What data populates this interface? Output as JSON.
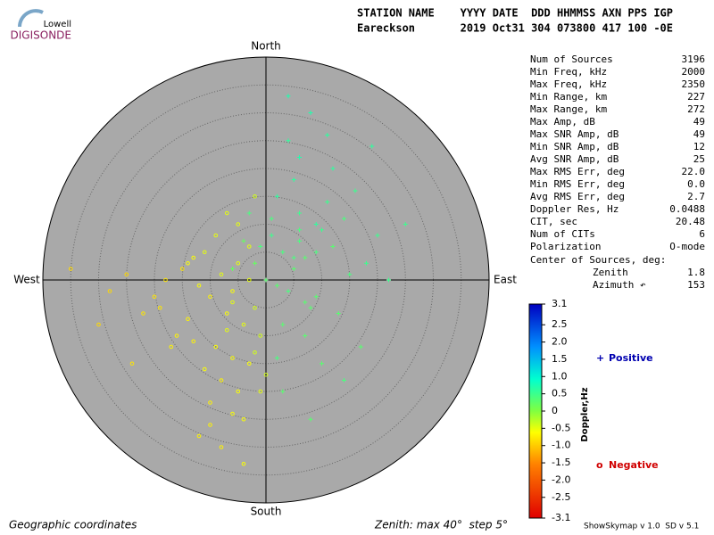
{
  "logo": {
    "top": "Lowell",
    "bottom": "DIGISONDE"
  },
  "header": {
    "line1": "STATION NAME    YYYY DATE  DDD HHMMSS AXN PPS IGP",
    "line2": "Eareckson       2019 Oct31 304 073800 417 100 -0E"
  },
  "stats": [
    [
      "Num of Sources",
      "3196"
    ],
    [
      "Min Freq, kHz",
      "2000"
    ],
    [
      "Max Freq, kHz",
      "2350"
    ],
    [
      "Min Range, km",
      "227"
    ],
    [
      "Max Range, km",
      "272"
    ],
    [
      "Max Amp, dB",
      "49"
    ],
    [
      "Max SNR Amp, dB",
      "49"
    ],
    [
      "Min SNR Amp, dB",
      "12"
    ],
    [
      "Avg SNR Amp, dB",
      "25"
    ],
    [
      "Max RMS Err, deg",
      "22.0"
    ],
    [
      "Min RMS Err, deg",
      "0.0"
    ],
    [
      "Avg RMS Err, deg",
      "2.7"
    ],
    [
      "Doppler Res, Hz",
      "0.0488"
    ],
    [
      "CIT, sec",
      "20.48"
    ],
    [
      "Num of CITs",
      "6"
    ],
    [
      "Polarization",
      "O-mode"
    ]
  ],
  "center": {
    "title": "Center of Sources, deg:",
    "zenith_label": "Zenith",
    "zenith": "1.8",
    "azimuth_label": "Azimuth ↶",
    "azimuth": "153"
  },
  "footer": {
    "left": "Geographic coordinates",
    "middle": "Zenith: max 40°  step 5°",
    "right": "ShowSkymap v 1.0  SD v 5.1"
  },
  "chart_data": {
    "type": "skymap",
    "directions": {
      "north": "North",
      "south": "South",
      "west": "West",
      "east": "East"
    },
    "rlim": [
      0,
      40
    ],
    "rticks": [
      5,
      10,
      15,
      20,
      25,
      30,
      35
    ],
    "colorbar": {
      "title": "Doppler,Hz",
      "lim": [
        -3.1,
        3.1
      ],
      "ticks": [
        3.1,
        2.5,
        {
          "value": 2,
          "label": "2.0"
        },
        1.5,
        {
          "value": 1,
          "label": "1.0"
        },
        0.5,
        0,
        -0.5,
        {
          "value": -1,
          "label": "-1.0"
        },
        -1.5,
        {
          "value": -2,
          "label": "-2.0"
        },
        -2.5,
        -3.1
      ]
    },
    "series": [
      {
        "name": "Positive",
        "marker": "+",
        "color": "#0000b0",
        "x": [
          3,
          5,
          1,
          7,
          9,
          -2,
          4,
          6,
          12,
          15,
          2,
          8,
          -4,
          10,
          0,
          5,
          3,
          14,
          18,
          6,
          9,
          11,
          -1,
          7,
          4,
          2,
          13,
          20,
          8,
          5,
          16,
          1,
          -6,
          10,
          6,
          3,
          22,
          12,
          7,
          9,
          -3,
          17,
          4,
          25,
          11,
          2,
          8,
          14,
          6,
          19
        ],
        "y": [
          5,
          2,
          8,
          4,
          10,
          3,
          -2,
          12,
          6,
          1,
          15,
          -5,
          7,
          9,
          0,
          18,
          -8,
          11,
          3,
          22,
          -3,
          14,
          6,
          -10,
          25,
          -14,
          -6,
          8,
          30,
          4,
          16,
          11,
          2,
          -15,
          7,
          -20,
          0,
          20,
          -4,
          5,
          12,
          -12,
          33,
          10,
          26,
          -1,
          -25,
          -18,
          9,
          24
        ],
        "doppler": [
          0.4,
          0.3,
          0.5,
          0.3,
          0.6,
          0.2,
          0.4,
          0.5,
          0.3,
          0.4,
          0.6,
          0.3,
          0.2,
          0.5,
          0.3,
          0.6,
          0.3,
          0.4,
          0.5,
          0.7,
          0.3,
          0.5,
          0.4,
          0.3,
          0.6,
          0.4,
          0.3,
          0.5,
          0.7,
          0.4,
          0.5,
          0.4,
          0.2,
          0.3,
          0.4,
          0.3,
          0.5,
          0.6,
          0.3,
          0.4,
          0.4,
          0.3,
          0.7,
          0.5,
          0.6,
          0.3,
          0.3,
          0.4,
          0.4,
          0.6
        ]
      },
      {
        "name": "Negative",
        "marker": "o",
        "color": "#d00000",
        "x": [
          -3,
          -6,
          -8,
          -2,
          -10,
          -5,
          -12,
          -4,
          -7,
          -15,
          -1,
          -9,
          -11,
          -6,
          -14,
          -3,
          -18,
          -8,
          -5,
          -20,
          -2,
          -13,
          -7,
          -10,
          -25,
          -4,
          -16,
          -9,
          -6,
          -22,
          0,
          -12,
          -3,
          -28,
          -8,
          -17,
          -5,
          -11,
          -30,
          -14,
          -1,
          -7,
          -19,
          -10,
          -4,
          -24,
          -2,
          -13,
          -35,
          -6
        ],
        "y": [
          0,
          -2,
          1,
          -5,
          -3,
          3,
          -1,
          -8,
          -6,
          2,
          -10,
          -12,
          5,
          -4,
          -7,
          -15,
          0,
          -18,
          -20,
          -3,
          -13,
          4,
          -9,
          -22,
          1,
          -25,
          -10,
          8,
          -14,
          -6,
          -17,
          -28,
          6,
          -2,
          -30,
          -12,
          10,
          -16,
          -8,
          3,
          -20,
          12,
          -5,
          -26,
          -33,
          -15,
          15,
          -11,
          2,
          -24
        ],
        "doppler": [
          -0.5,
          -0.6,
          -0.5,
          -0.4,
          -0.7,
          -0.5,
          -0.6,
          -0.5,
          -0.6,
          -0.8,
          -0.4,
          -0.6,
          -0.5,
          -0.5,
          -0.7,
          -0.6,
          -0.8,
          -0.7,
          -0.6,
          -0.8,
          -0.4,
          -0.6,
          -0.5,
          -0.7,
          -0.9,
          -0.6,
          -0.7,
          -0.5,
          -0.6,
          -0.8,
          -0.4,
          -0.7,
          -0.5,
          -0.9,
          -0.7,
          -0.7,
          -0.5,
          -0.6,
          -0.9,
          -0.6,
          -0.5,
          -0.5,
          -0.8,
          -0.7,
          -0.6,
          -0.8,
          -0.4,
          -0.7,
          -0.9,
          -0.6
        ]
      }
    ]
  }
}
